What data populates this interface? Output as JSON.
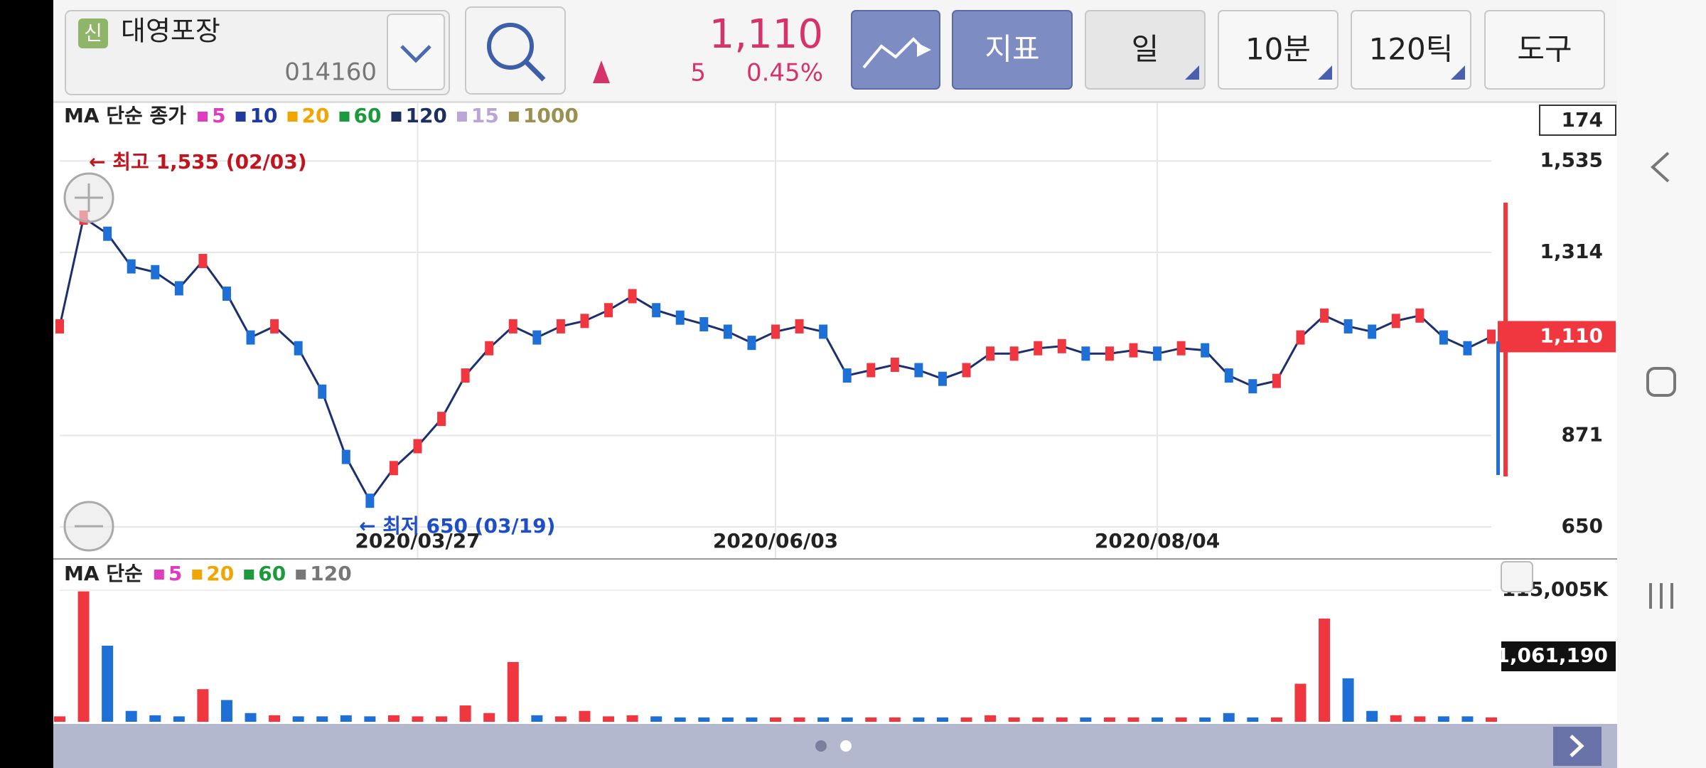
{
  "header": {
    "badge": "신",
    "name": "대영포장",
    "code": "014160",
    "price": "1,110",
    "change": "5",
    "change_pct": "0.45%",
    "buttons": [
      "지표",
      "일",
      "10분",
      "120틱",
      "도구"
    ]
  },
  "chart_data": [
    {
      "type": "line",
      "legend_title": "MA 단순 종가",
      "ma": [
        {
          "name": "5",
          "color": "#e03cc0"
        },
        {
          "name": "10",
          "color": "#1f3a9e"
        },
        {
          "name": "20",
          "color": "#f0a500"
        },
        {
          "name": "60",
          "color": "#1a9a3a"
        },
        {
          "name": "120",
          "color": "#1c2f5e"
        },
        {
          "name": "15",
          "color": "#b9a6d6"
        },
        {
          "name": "1000",
          "color": "#9a9050"
        }
      ],
      "annotations": [
        "← 최고 1,535 (02/03)",
        "← 최저 650 (03/19)"
      ],
      "top_label": "174",
      "current_label": "1,110",
      "current_value": 1110,
      "color": "#1c2f6e",
      "up_color": "#f0363f",
      "down_color": "#1e6fd6",
      "categories": [
        null,
        null,
        null,
        null,
        null,
        null,
        null,
        null,
        null,
        null,
        null,
        null,
        null,
        null,
        null,
        "2020/03/27",
        null,
        null,
        null,
        null,
        null,
        null,
        null,
        null,
        null,
        null,
        null,
        null,
        null,
        null,
        "2020/06/03",
        null,
        null,
        null,
        null,
        null,
        null,
        null,
        null,
        null,
        null,
        null,
        null,
        null,
        null,
        null,
        "2020/08/04",
        null,
        null,
        null,
        null,
        null,
        null,
        null,
        null,
        null,
        null,
        null,
        null,
        null,
        null
      ],
      "values": [
        1135,
        1398,
        1359,
        1280,
        1266,
        1227,
        1293,
        1214,
        1108,
        1135,
        1082,
        977,
        819,
        713,
        792,
        845,
        911,
        1016,
        1082,
        1135,
        1108,
        1135,
        1148,
        1174,
        1208,
        1174,
        1156,
        1140,
        1122,
        1095,
        1122,
        1135,
        1122,
        1016,
        1029,
        1042,
        1029,
        1008,
        1029,
        1069,
        1069,
        1082,
        1087,
        1069,
        1069,
        1077,
        1069,
        1082,
        1077,
        1016,
        990,
        1003,
        1108,
        1161,
        1135,
        1122,
        1148,
        1161,
        1108,
        1082,
        1110
      ],
      "ylim": [
        574,
        1675
      ],
      "yticks": [
        {
          "value": 1535,
          "label": "1,535"
        },
        {
          "value": 1314,
          "label": "1,314"
        },
        {
          "value": 871,
          "label": "871"
        },
        {
          "value": 650,
          "label": "650"
        }
      ],
      "grid": true
    },
    {
      "type": "bar",
      "legend_title": "MA 단순",
      "ma": [
        {
          "name": "5",
          "color": "#e03cc0"
        },
        {
          "name": "20",
          "color": "#f0a500"
        },
        {
          "name": "60",
          "color": "#1a9a3a"
        },
        {
          "name": "120",
          "color": "#777777"
        }
      ],
      "current_label": "1,061,190",
      "values": [
        4750,
        114000,
        66500,
        9500,
        5700,
        4750,
        28500,
        19000,
        7600,
        5700,
        4750,
        4750,
        5700,
        4750,
        5700,
        4750,
        4750,
        14250,
        7600,
        52250,
        5700,
        4750,
        9500,
        4750,
        5700,
        4750,
        3800,
        3800,
        3800,
        3800,
        3800,
        3800,
        3800,
        3800,
        3800,
        3800,
        3800,
        3800,
        3800,
        5700,
        3800,
        3800,
        3800,
        3800,
        3800,
        3800,
        3800,
        3800,
        3800,
        7600,
        3800,
        3800,
        33250,
        90250,
        38000,
        9500,
        5700,
        4750,
        4750,
        4750,
        3800
      ],
      "ylim": [
        0,
        115005
      ],
      "yticks": [
        {
          "value": 115005,
          "label": "115,005K"
        }
      ]
    }
  ]
}
